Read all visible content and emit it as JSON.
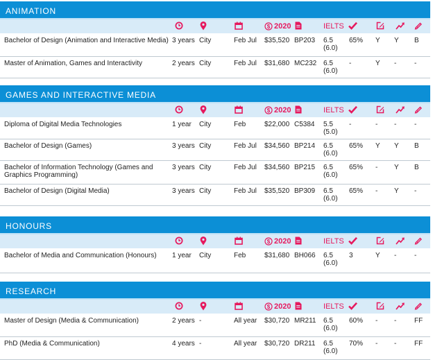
{
  "colors": {
    "header_bg": "#0c8fd6",
    "icon_row_bg": "#d8ebf8",
    "icon_color": "#e6195e"
  },
  "icons": {
    "duration": "clock-icon",
    "location": "location-pin-icon",
    "intake": "calendar-icon",
    "fee_prefix": "dollar-circle-icon",
    "fee_year": "2020",
    "code": "document-icon",
    "ielts": "IELTS",
    "atar": "checkmark-icon",
    "prerequisites": "edit-icon",
    "pathway": "trending-arrow-icon",
    "portfolio": "pencil-icon"
  },
  "sections": [
    {
      "title": "ANIMATION",
      "rows": [
        {
          "program": "Bachelor of Design (Animation and Interactive Media)",
          "duration": "3 years",
          "location": "City",
          "intake": "Feb Jul",
          "fee": "$35,520",
          "code": "BP203",
          "ielts": "6.5",
          "ielts_sub": "(6.0)",
          "atar": "65%",
          "c1": "Y",
          "c2": "Y",
          "c3": "B"
        },
        {
          "program": "Master of Animation, Games and Interactivity",
          "duration": "2 years",
          "location": "City",
          "intake": "Feb Jul",
          "fee": "$31,680",
          "code": "MC232",
          "ielts": "6.5",
          "ielts_sub": "(6.0)",
          "atar": "-",
          "c1": "Y",
          "c2": "-",
          "c3": "-"
        }
      ]
    },
    {
      "title": "GAMES AND INTERACTIVE MEDIA",
      "rows": [
        {
          "program": "Diploma of Digital Media Technologies",
          "duration": "1 year",
          "location": "City",
          "intake": "Feb",
          "fee": "$22,000",
          "code": "C5384",
          "ielts": "5.5",
          "ielts_sub": "(5.0)",
          "atar": "-",
          "c1": "-",
          "c2": "-",
          "c3": "-"
        },
        {
          "program": "Bachelor of Design (Games)",
          "duration": "3 years",
          "location": "City",
          "intake": "Feb Jul",
          "fee": "$34,560",
          "code": "BP214",
          "ielts": "6.5",
          "ielts_sub": "(6.0)",
          "atar": "65%",
          "c1": "Y",
          "c2": "Y",
          "c3": "B"
        },
        {
          "program": "Bachelor of Information Technology (Games and Graphics Programming)",
          "duration": "3 years",
          "location": "City",
          "intake": "Feb Jul",
          "fee": "$34,560",
          "code": "BP215",
          "ielts": "6.5",
          "ielts_sub": "(6.0)",
          "atar": "65%",
          "c1": "-",
          "c2": "Y",
          "c3": "B"
        },
        {
          "program": "Bachelor of Design (Digital Media)",
          "duration": "3 years",
          "location": "City",
          "intake": "Feb Jul",
          "fee": "$35,520",
          "code": "BP309",
          "ielts": "6.5",
          "ielts_sub": "(6.0)",
          "atar": "65%",
          "c1": "-",
          "c2": "Y",
          "c3": "-"
        }
      ]
    },
    {
      "title": "HONOURS",
      "rows": [
        {
          "program": "Bachelor of Media and Communication (Honours)",
          "duration": "1 year",
          "location": "City",
          "intake": "Feb",
          "fee": "$31,680",
          "code": "BH066",
          "ielts": "6.5",
          "ielts_sub": "(6.0)",
          "atar": "3",
          "c1": "Y",
          "c2": "-",
          "c3": "-"
        }
      ]
    },
    {
      "title": "RESEARCH",
      "rows": [
        {
          "program": "Master of Design (Media & Communication)",
          "duration": "2 years",
          "location": "-",
          "intake": "All year",
          "fee": "$30,720",
          "code": "MR211",
          "ielts": "6.5",
          "ielts_sub": "(6.0)",
          "atar": "60%",
          "c1": "-",
          "c2": "-",
          "c3": "FF"
        },
        {
          "program": "PhD (Media & Communication)",
          "duration": "4 years",
          "location": "-",
          "intake": "All year",
          "fee": "$30,720",
          "code": "DR211",
          "ielts": "6.5",
          "ielts_sub": "(6.0)",
          "atar": "70%",
          "c1": "-",
          "c2": "-",
          "c3": "FF"
        }
      ]
    }
  ]
}
